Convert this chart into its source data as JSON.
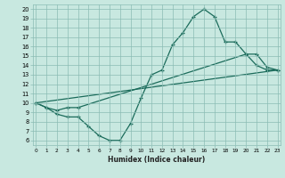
{
  "title": "",
  "xlabel": "Humidex (Indice chaleur)",
  "bg_color": "#c8e8e0",
  "grid_color": "#8bbcb4",
  "line_color": "#1a6b5a",
  "line1_x": [
    0,
    1,
    2,
    3,
    4,
    5,
    6,
    7,
    8,
    9,
    10,
    11,
    12,
    13,
    14,
    15,
    16,
    17,
    18,
    19,
    20,
    21,
    22,
    23
  ],
  "line1_y": [
    10.0,
    9.5,
    8.8,
    8.5,
    8.5,
    7.5,
    6.5,
    6.0,
    6.0,
    7.8,
    10.5,
    13.0,
    13.5,
    16.2,
    17.5,
    19.2,
    20.0,
    19.2,
    16.5,
    16.5,
    15.2,
    14.0,
    13.5,
    13.5
  ],
  "line2_x": [
    0,
    1,
    2,
    3,
    4,
    20,
    21,
    22,
    23
  ],
  "line2_y": [
    10.0,
    9.5,
    9.2,
    9.5,
    9.5,
    15.2,
    15.2,
    13.8,
    13.5
  ],
  "line3_x": [
    0,
    23
  ],
  "line3_y": [
    10.0,
    13.5
  ],
  "xlim": [
    -0.3,
    23.3
  ],
  "ylim": [
    5.5,
    20.5
  ],
  "yticks": [
    6,
    7,
    8,
    9,
    10,
    11,
    12,
    13,
    14,
    15,
    16,
    17,
    18,
    19,
    20
  ],
  "xticks": [
    0,
    1,
    2,
    3,
    4,
    5,
    6,
    7,
    8,
    9,
    10,
    11,
    12,
    13,
    14,
    15,
    16,
    17,
    18,
    19,
    20,
    21,
    22,
    23
  ],
  "marker": "+"
}
